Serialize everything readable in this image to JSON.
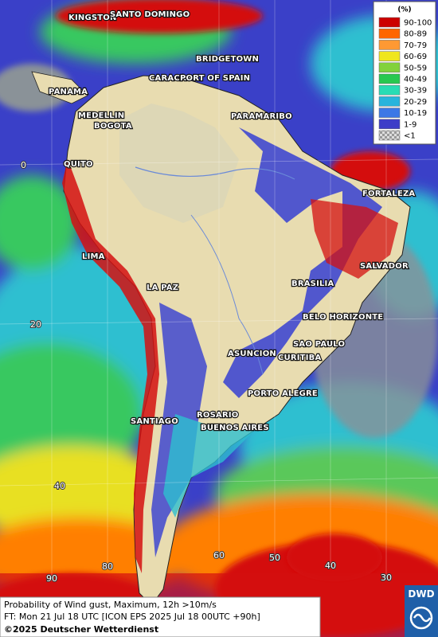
{
  "legend": {
    "unit": "(%)",
    "classes": [
      {
        "label": "90-100",
        "color": "#cc0000"
      },
      {
        "label": "80-89",
        "color": "#ff6600"
      },
      {
        "label": "70-79",
        "color": "#ff9933"
      },
      {
        "label": "60-69",
        "color": "#f0e61e"
      },
      {
        "label": "50-59",
        "color": "#82d23c"
      },
      {
        "label": "40-49",
        "color": "#28c850"
      },
      {
        "label": "30-39",
        "color": "#28dcb4"
      },
      {
        "label": "20-29",
        "color": "#28b4dc"
      },
      {
        "label": "10-19",
        "color": "#3c78e6"
      },
      {
        "label": "1-9",
        "color": "#3c3cc8"
      },
      {
        "label": "<1",
        "color": "checker"
      }
    ]
  },
  "cities": [
    "KINGSTON",
    "SANTO DOMINGO",
    "BRIDGETOWN",
    "CARACAS",
    "PORT OF SPAIN",
    "PANAMA",
    "MEDELLIN",
    "BOGOTA",
    "PARAMARIBO",
    "QUITO",
    "FORTALEZA",
    "LIMA",
    "SALVADOR",
    "LA PAZ",
    "BRASILIA",
    "BELO HORIZONTE",
    "SAO PAULO",
    "ASUNCION",
    "CURITIBA",
    "PORTO ALEGRE",
    "ROSARIO",
    "SANTIAGO",
    "BUENOS AIRES"
  ],
  "latitude_labels": [
    "0",
    "20",
    "40"
  ],
  "longitude_labels": [
    "90",
    "80",
    "60",
    "50",
    "40",
    "30"
  ],
  "caption": {
    "line1": "Probability of Wind gust, Maximum, 12h >10m/s",
    "line2": "FT: Mon 21 Jul 18 UTC [ICON EPS 2025 Jul 18 00UTC +90h]",
    "line3": "©2025 Deutscher Wetterdienst"
  },
  "logo": "DWD"
}
